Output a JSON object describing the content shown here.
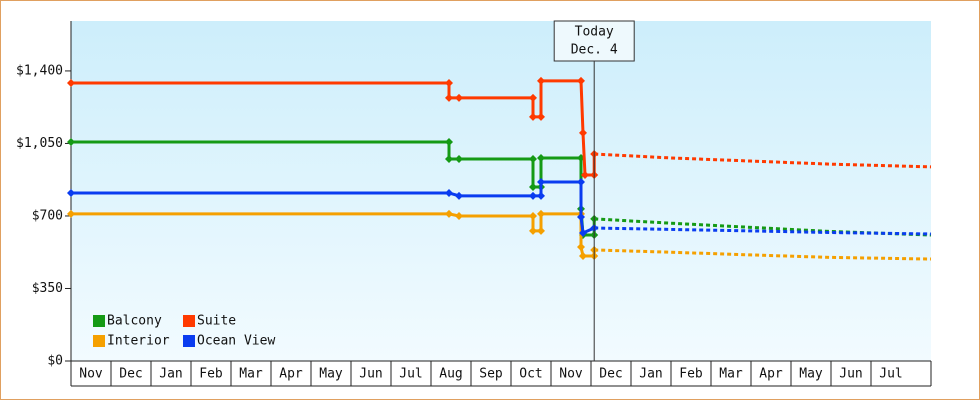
{
  "chart_data": {
    "type": "step-line",
    "annotation": {
      "x": 13.08,
      "lines": [
        "Today",
        "Dec. 4"
      ]
    },
    "xlim": [
      0,
      21.5
    ],
    "xticks": [
      {
        "value": 0.5,
        "label": "Nov"
      },
      {
        "value": 1.5,
        "label": "Dec"
      },
      {
        "value": 2.5,
        "label": "Jan"
      },
      {
        "value": 3.5,
        "label": "Feb"
      },
      {
        "value": 4.5,
        "label": "Mar"
      },
      {
        "value": 5.5,
        "label": "Apr"
      },
      {
        "value": 6.5,
        "label": "May"
      },
      {
        "value": 7.5,
        "label": "Jun"
      },
      {
        "value": 8.5,
        "label": "Jul"
      },
      {
        "value": 9.5,
        "label": "Aug"
      },
      {
        "value": 10.5,
        "label": "Sep"
      },
      {
        "value": 11.5,
        "label": "Oct"
      },
      {
        "value": 12.5,
        "label": "Nov"
      },
      {
        "value": 13.5,
        "label": "Dec"
      },
      {
        "value": 14.5,
        "label": "Jan"
      },
      {
        "value": 15.5,
        "label": "Feb"
      },
      {
        "value": 16.5,
        "label": "Mar"
      },
      {
        "value": 17.5,
        "label": "Apr"
      },
      {
        "value": 18.5,
        "label": "May"
      },
      {
        "value": 19.5,
        "label": "Jun"
      },
      {
        "value": 20.5,
        "label": "Jul"
      }
    ],
    "ylim": [
      0,
      1641
    ],
    "yticks": [
      {
        "value": 0,
        "label": "$0"
      },
      {
        "value": 350,
        "label": "$350"
      },
      {
        "value": 700,
        "label": "$700"
      },
      {
        "value": 1050,
        "label": "$1,050"
      },
      {
        "value": 1400,
        "label": "$1,400"
      }
    ],
    "legend": "bottom-left",
    "series": [
      {
        "name": "Balcony",
        "color": "#159a15",
        "x": [
          0,
          9.45,
          9.45,
          9.7,
          11.55,
          11.55,
          11.75,
          11.75,
          12.75,
          12.75,
          12.8,
          13.08,
          13.08
        ],
        "values": [
          1057,
          1057,
          975,
          975,
          975,
          840,
          840,
          980,
          980,
          734,
          608,
          608,
          686
        ],
        "forecast_x": [
          13.08,
          15,
          17,
          19,
          21.5
        ],
        "forecast_values": [
          686,
          665,
          645,
          625,
          608
        ]
      },
      {
        "name": "Suite",
        "color": "#ff3a00",
        "x": [
          0,
          9.45,
          9.45,
          9.7,
          11.55,
          11.55,
          11.75,
          11.75,
          12.75,
          12.8,
          12.85,
          13.08,
          13.08
        ],
        "values": [
          1342,
          1342,
          1270,
          1270,
          1270,
          1178,
          1178,
          1352,
          1352,
          1101,
          898,
          898,
          999
        ],
        "forecast_x": [
          13.08,
          15,
          17,
          19,
          21.5
        ],
        "forecast_values": [
          999,
          980,
          965,
          950,
          937
        ]
      },
      {
        "name": "Interior",
        "color": "#f5a000",
        "x": [
          0,
          9.45,
          9.7,
          11.55,
          11.55,
          11.75,
          11.75,
          12.75,
          12.75,
          12.8,
          13.08,
          13.08
        ],
        "values": [
          710,
          710,
          700,
          700,
          628,
          628,
          710,
          710,
          550,
          507,
          507,
          536
        ],
        "forecast_x": [
          13.08,
          15,
          17,
          19,
          21.5
        ],
        "forecast_values": [
          536,
          525,
          512,
          500,
          492
        ]
      },
      {
        "name": "Ocean View",
        "color": "#0a3cf0",
        "x": [
          0,
          9.45,
          9.7,
          11.55,
          11.75,
          11.75,
          12.75,
          12.75,
          12.8,
          13.08
        ],
        "values": [
          811,
          811,
          797,
          797,
          797,
          864,
          864,
          695,
          618,
          642
        ],
        "forecast_x": [
          13.08,
          15,
          17,
          19,
          21.5
        ],
        "forecast_values": [
          642,
          635,
          628,
          620,
          613
        ]
      }
    ]
  }
}
